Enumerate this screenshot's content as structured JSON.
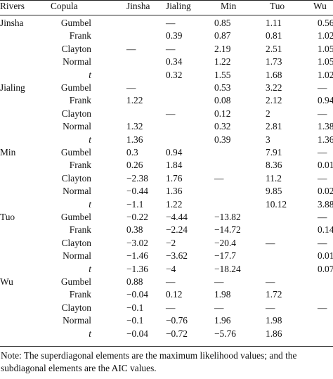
{
  "columns": [
    "Rivers",
    "Copula",
    "Jinsha",
    "Jialing",
    "Min",
    "Tuo",
    "Wu"
  ],
  "groups": [
    {
      "river": "Jinsha",
      "rows": [
        {
          "copula": "Gumbel",
          "italic": false,
          "values": [
            "",
            "—",
            "0.85",
            "1.11",
            "0.56"
          ]
        },
        {
          "copula": "Frank",
          "italic": false,
          "values": [
            "",
            "0.39",
            "0.87",
            "0.81",
            "1.02"
          ]
        },
        {
          "copula": "Clayton",
          "italic": false,
          "values": [
            "—",
            "—",
            "2.19",
            "2.51",
            "1.05"
          ]
        },
        {
          "copula": "Normal",
          "italic": false,
          "values": [
            "",
            "0.34",
            "1.22",
            "1.73",
            "1.05"
          ]
        },
        {
          "copula": "t",
          "italic": true,
          "values": [
            "",
            "0.32",
            "1.55",
            "1.68",
            "1.02"
          ]
        }
      ]
    },
    {
      "river": "Jialing",
      "rows": [
        {
          "copula": "Gumbel",
          "italic": false,
          "values": [
            "—",
            "",
            "0.53",
            "3.22",
            "—"
          ]
        },
        {
          "copula": "Frank",
          "italic": false,
          "values": [
            "1.22",
            "",
            "0.08",
            "2.12",
            "0.94"
          ]
        },
        {
          "copula": "Clayton",
          "italic": false,
          "values": [
            "",
            "—",
            "0.12",
            "2",
            "—"
          ]
        },
        {
          "copula": "Normal",
          "italic": false,
          "values": [
            "1.32",
            "",
            "0.32",
            "2.81",
            "1.38"
          ]
        },
        {
          "copula": "t",
          "italic": true,
          "values": [
            "1.36",
            "",
            "0.39",
            "3",
            "1.36"
          ]
        }
      ]
    },
    {
      "river": "Min",
      "rows": [
        {
          "copula": "Gumbel",
          "italic": false,
          "values": [
            "0.3",
            "0.94",
            "",
            "7.91",
            "—"
          ]
        },
        {
          "copula": "Frank",
          "italic": false,
          "values": [
            "0.26",
            "1.84",
            "",
            "8.36",
            "0.01"
          ]
        },
        {
          "copula": "Clayton",
          "italic": false,
          "values": [
            "−2.38",
            "1.76",
            "—",
            "11.2",
            "—"
          ]
        },
        {
          "copula": "Normal",
          "italic": false,
          "values": [
            "−0.44",
            "1.36",
            "",
            "9.85",
            "0.02"
          ]
        },
        {
          "copula": "t",
          "italic": true,
          "values": [
            "−1.1",
            "1.22",
            "",
            "10.12",
            "3.88"
          ]
        }
      ]
    },
    {
      "river": "Tuo",
      "rows": [
        {
          "copula": "Gumbel",
          "italic": false,
          "values": [
            "−0.22",
            "−4.44",
            "−13.82",
            "",
            "—"
          ]
        },
        {
          "copula": "Frank",
          "italic": false,
          "values": [
            "0.38",
            "−2.24",
            "−14.72",
            "",
            "0.14"
          ]
        },
        {
          "copula": "Clayton",
          "italic": false,
          "values": [
            "−3.02",
            "−2",
            "−20.4",
            "—",
            "—"
          ]
        },
        {
          "copula": "Normal",
          "italic": false,
          "values": [
            "−1.46",
            "−3.62",
            "−17.7",
            "",
            "0.01"
          ]
        },
        {
          "copula": "t",
          "italic": true,
          "values": [
            "−1.36",
            "−4",
            "−18.24",
            "",
            "0.07"
          ]
        }
      ]
    },
    {
      "river": "Wu",
      "rows": [
        {
          "copula": "Gumbel",
          "italic": false,
          "values": [
            "0.88",
            "—",
            "—",
            "—",
            ""
          ]
        },
        {
          "copula": "Frank",
          "italic": false,
          "values": [
            "−0.04",
            "0.12",
            "1.98",
            "1.72",
            ""
          ]
        },
        {
          "copula": "Clayton",
          "italic": false,
          "values": [
            "−0.1",
            "—",
            "—",
            "—",
            "—"
          ]
        },
        {
          "copula": "Normal",
          "italic": false,
          "values": [
            "−0.1",
            "−0.76",
            "1.96",
            "1.98",
            ""
          ]
        },
        {
          "copula": "t",
          "italic": true,
          "values": [
            "−0.04",
            "−0.72",
            "−5.76",
            "1.86",
            ""
          ]
        }
      ]
    }
  ],
  "note": "Note: The superdiagonal elements are the maximum likelihood values; and the subdiagonal elements are the AIC values."
}
